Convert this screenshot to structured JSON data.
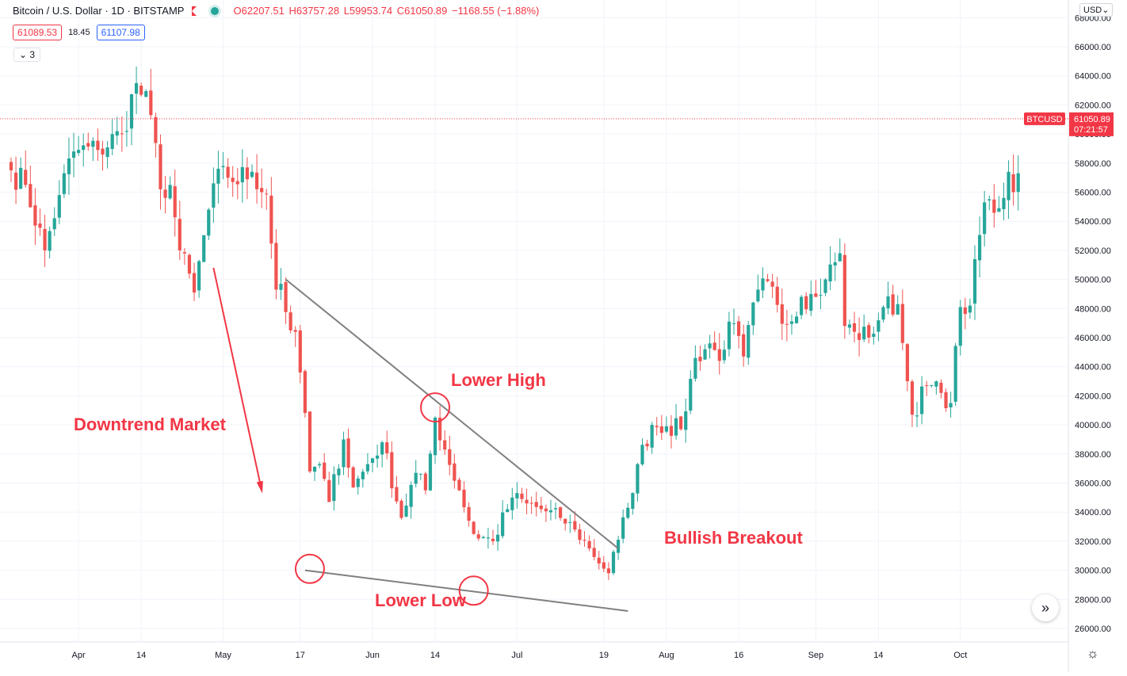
{
  "header": {
    "symbol": "Bitcoin / U.S. Dollar · 1D · BITSTAMP",
    "ohlc": {
      "open": "O62207.51",
      "high": "H63757.28",
      "low": "L59953.74",
      "close": "C61050.89",
      "change": "−1168.55 (−1.88%)"
    },
    "sell_price": "61089.53",
    "spread": "18.45",
    "buy_price": "61107.98",
    "indicators_label": "3",
    "currency_button": "USD"
  },
  "price_tag": {
    "ticker": "BTCUSD",
    "price": "61050.89",
    "countdown": "07:21:57"
  },
  "colors": {
    "up": "#26a69a",
    "down": "#ef5350",
    "annotation": "#f23645",
    "trendline": "#808080"
  },
  "annotations": {
    "downtrend": "Downtrend Market",
    "lower_high": "Lower High",
    "lower_low": "Lower Low",
    "breakout": "Bullish Breakout"
  },
  "chart_data": {
    "type": "candlestick",
    "symbol": "BTCUSD",
    "interval": "1D",
    "x_range": [
      "2021-03-18",
      "2021-10-12"
    ],
    "ylim": [
      25000,
      68000
    ],
    "grid": true,
    "y_ticks": [
      "26000.00",
      "28000.00",
      "30000.00",
      "32000.00",
      "34000.00",
      "36000.00",
      "38000.00",
      "40000.00",
      "42000.00",
      "44000.00",
      "46000.00",
      "48000.00",
      "50000.00",
      "52000.00",
      "54000.00",
      "56000.00",
      "58000.00",
      "60000.00",
      "62000.00",
      "64000.00",
      "66000.00",
      "68000.00"
    ],
    "x_ticks": [
      {
        "label": "Apr",
        "date": "2021-04-01"
      },
      {
        "label": "14",
        "date": "2021-04-14"
      },
      {
        "label": "May",
        "date": "2021-05-01"
      },
      {
        "label": "17",
        "date": "2021-05-17"
      },
      {
        "label": "Jun",
        "date": "2021-06-01"
      },
      {
        "label": "14",
        "date": "2021-06-14"
      },
      {
        "label": "Jul",
        "date": "2021-07-01"
      },
      {
        "label": "19",
        "date": "2021-07-19"
      },
      {
        "label": "Aug",
        "date": "2021-08-01"
      },
      {
        "label": "16",
        "date": "2021-08-16"
      },
      {
        "label": "Sep",
        "date": "2021-09-01"
      },
      {
        "label": "14",
        "date": "2021-09-14"
      },
      {
        "label": "Oct",
        "date": "2021-10-01"
      }
    ],
    "last_price": 61050.89,
    "start_date": "2021-03-18",
    "close_anchors": [
      [
        "2021-03-18",
        57500
      ],
      [
        "2021-03-21",
        56500
      ],
      [
        "2021-03-25",
        52000
      ],
      [
        "2021-03-28",
        55800
      ],
      [
        "2021-03-31",
        58800
      ],
      [
        "2021-04-05",
        58900
      ],
      [
        "2021-04-10",
        60000
      ],
      [
        "2021-04-13",
        63500
      ],
      [
        "2021-04-16",
        61300
      ],
      [
        "2021-04-18",
        56200
      ],
      [
        "2021-04-20",
        56500
      ],
      [
        "2021-04-22",
        52000
      ],
      [
        "2021-04-25",
        49100
      ],
      [
        "2021-04-28",
        54800
      ],
      [
        "2021-05-01",
        57800
      ],
      [
        "2021-05-03",
        56700
      ],
      [
        "2021-05-07",
        57400
      ],
      [
        "2021-05-10",
        55900
      ],
      [
        "2021-05-12",
        49300
      ],
      [
        "2021-05-13",
        49700
      ],
      [
        "2021-05-15",
        46500
      ],
      [
        "2021-05-16",
        46400
      ],
      [
        "2021-05-17",
        43600
      ],
      [
        "2021-05-19",
        36800
      ],
      [
        "2021-05-21",
        37300
      ],
      [
        "2021-05-23",
        34700
      ],
      [
        "2021-05-26",
        39000
      ],
      [
        "2021-05-28",
        35700
      ],
      [
        "2021-05-31",
        37300
      ],
      [
        "2021-06-03",
        38800
      ],
      [
        "2021-06-07",
        33600
      ],
      [
        "2021-06-10",
        36700
      ],
      [
        "2021-06-12",
        35500
      ],
      [
        "2021-06-14",
        40500
      ],
      [
        "2021-06-16",
        38300
      ],
      [
        "2021-06-19",
        35500
      ],
      [
        "2021-06-22",
        32500
      ],
      [
        "2021-06-26",
        32000
      ],
      [
        "2021-06-30",
        35000
      ],
      [
        "2021-07-03",
        34600
      ],
      [
        "2021-07-06",
        34200
      ],
      [
        "2021-07-10",
        33600
      ],
      [
        "2021-07-13",
        32800
      ],
      [
        "2021-07-16",
        31500
      ],
      [
        "2021-07-20",
        29800
      ],
      [
        "2021-07-22",
        32100
      ],
      [
        "2021-07-24",
        34300
      ],
      [
        "2021-07-26",
        37300
      ],
      [
        "2021-07-29",
        40000
      ],
      [
        "2021-08-01",
        39900
      ],
      [
        "2021-08-04",
        39700
      ],
      [
        "2021-08-07",
        44600
      ],
      [
        "2021-08-10",
        45600
      ],
      [
        "2021-08-12",
        44400
      ],
      [
        "2021-08-14",
        47100
      ],
      [
        "2021-08-17",
        44700
      ],
      [
        "2021-08-20",
        49300
      ],
      [
        "2021-08-23",
        49500
      ],
      [
        "2021-08-26",
        46900
      ],
      [
        "2021-08-29",
        48800
      ],
      [
        "2021-09-01",
        48800
      ],
      [
        "2021-09-03",
        50000
      ],
      [
        "2021-09-06",
        51800
      ],
      [
        "2021-09-07",
        46800
      ],
      [
        "2021-09-09",
        46400
      ],
      [
        "2021-09-12",
        46000
      ],
      [
        "2021-09-15",
        48100
      ],
      [
        "2021-09-18",
        48300
      ],
      [
        "2021-09-20",
        43000
      ],
      [
        "2021-09-21",
        40700
      ],
      [
        "2021-09-24",
        42700
      ],
      [
        "2021-09-27",
        42200
      ],
      [
        "2021-09-29",
        41500
      ],
      [
        "2021-10-01",
        48100
      ],
      [
        "2021-10-03",
        48200
      ],
      [
        "2021-10-06",
        55300
      ],
      [
        "2021-10-09",
        54900
      ],
      [
        "2021-10-11",
        57400
      ],
      [
        "2021-10-12",
        56000
      ],
      [
        "2021-10-13",
        57300
      ]
    ],
    "trendlines": [
      {
        "name": "upper",
        "from": [
          "2021-05-14",
          50000
        ],
        "to": [
          "2021-07-22",
          31500
        ]
      },
      {
        "name": "lower",
        "from": [
          "2021-05-18",
          30000
        ],
        "to": [
          "2021-07-24",
          27200
        ]
      }
    ],
    "markers": [
      {
        "label": "Lower High",
        "date": "2021-06-14",
        "price": 41200
      },
      {
        "label": "Lower Low",
        "date": "2021-06-22",
        "price": 28600
      },
      {
        "label": "start-low",
        "date": "2021-05-19",
        "price": 30100
      }
    ]
  }
}
